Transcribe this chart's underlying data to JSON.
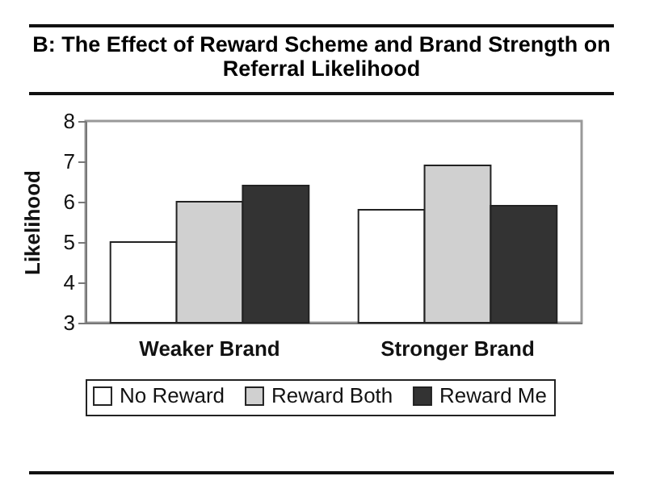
{
  "chart_data": {
    "type": "bar",
    "title": "B: The Effect of Reward Scheme and Brand Strength on Referral Likelihood",
    "ylabel": "Likelihood",
    "categories": [
      "Weaker Brand",
      "Stronger Brand"
    ],
    "series": [
      {
        "name": "No Reward",
        "color": "#ffffff",
        "values": [
          5.0,
          5.8
        ]
      },
      {
        "name": "Reward Both",
        "color": "#d0d0d0",
        "values": [
          6.0,
          6.9
        ]
      },
      {
        "name": "Reward Me",
        "color": "#333333",
        "values": [
          6.4,
          5.9
        ]
      }
    ],
    "ylim": [
      3,
      8
    ],
    "yticks": [
      3,
      4,
      5,
      6,
      7,
      8
    ],
    "grid": false,
    "legend": "bottom"
  }
}
